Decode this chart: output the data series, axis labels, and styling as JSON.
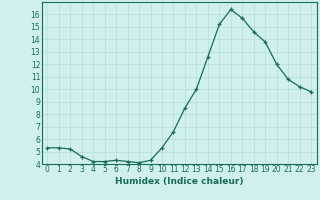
{
  "x": [
    0,
    1,
    2,
    3,
    4,
    5,
    6,
    7,
    8,
    9,
    10,
    11,
    12,
    13,
    14,
    15,
    16,
    17,
    18,
    19,
    20,
    21,
    22,
    23
  ],
  "y": [
    5.3,
    5.3,
    5.2,
    4.6,
    4.2,
    4.2,
    4.3,
    4.2,
    4.1,
    4.3,
    5.3,
    6.6,
    8.5,
    10.0,
    12.6,
    15.2,
    16.4,
    15.7,
    14.6,
    13.8,
    12.0,
    10.8,
    10.2,
    9.8
  ],
  "xlabel": "Humidex (Indice chaleur)",
  "xlim": [
    -0.5,
    23.5
  ],
  "ylim": [
    4,
    17.0
  ],
  "yticks": [
    4,
    5,
    6,
    7,
    8,
    9,
    10,
    11,
    12,
    13,
    14,
    15,
    16
  ],
  "xticks": [
    0,
    1,
    2,
    3,
    4,
    5,
    6,
    7,
    8,
    9,
    10,
    11,
    12,
    13,
    14,
    15,
    16,
    17,
    18,
    19,
    20,
    21,
    22,
    23
  ],
  "line_color": "#1a6b5a",
  "marker": "+",
  "bg_color": "#cff0ec",
  "grid_color": "#b8ddd8",
  "xlabel_fontsize": 6.5,
  "tick_fontsize": 5.5,
  "linewidth": 0.9,
  "markersize": 3.5,
  "markeredgewidth": 0.9
}
